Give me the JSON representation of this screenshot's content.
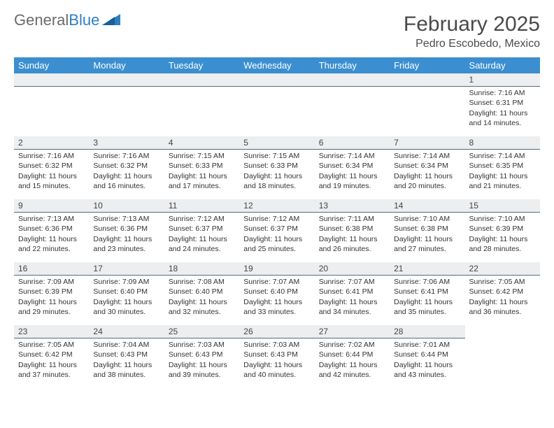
{
  "logo": {
    "part1": "General",
    "part2": "Blue"
  },
  "title": "February 2025",
  "location": "Pedro Escobedo, Mexico",
  "colors": {
    "header_bg": "#3b8fd0",
    "header_text": "#ffffff",
    "daynum_bg": "#eceeef",
    "daynum_border": "#5a6a7a",
    "body_text": "#333333"
  },
  "weekdays": [
    "Sunday",
    "Monday",
    "Tuesday",
    "Wednesday",
    "Thursday",
    "Friday",
    "Saturday"
  ],
  "weeks": [
    [
      null,
      null,
      null,
      null,
      null,
      null,
      {
        "n": "1",
        "sr": "Sunrise: 7:16 AM",
        "ss": "Sunset: 6:31 PM",
        "dl": "Daylight: 11 hours and 14 minutes."
      }
    ],
    [
      {
        "n": "2",
        "sr": "Sunrise: 7:16 AM",
        "ss": "Sunset: 6:32 PM",
        "dl": "Daylight: 11 hours and 15 minutes."
      },
      {
        "n": "3",
        "sr": "Sunrise: 7:16 AM",
        "ss": "Sunset: 6:32 PM",
        "dl": "Daylight: 11 hours and 16 minutes."
      },
      {
        "n": "4",
        "sr": "Sunrise: 7:15 AM",
        "ss": "Sunset: 6:33 PM",
        "dl": "Daylight: 11 hours and 17 minutes."
      },
      {
        "n": "5",
        "sr": "Sunrise: 7:15 AM",
        "ss": "Sunset: 6:33 PM",
        "dl": "Daylight: 11 hours and 18 minutes."
      },
      {
        "n": "6",
        "sr": "Sunrise: 7:14 AM",
        "ss": "Sunset: 6:34 PM",
        "dl": "Daylight: 11 hours and 19 minutes."
      },
      {
        "n": "7",
        "sr": "Sunrise: 7:14 AM",
        "ss": "Sunset: 6:34 PM",
        "dl": "Daylight: 11 hours and 20 minutes."
      },
      {
        "n": "8",
        "sr": "Sunrise: 7:14 AM",
        "ss": "Sunset: 6:35 PM",
        "dl": "Daylight: 11 hours and 21 minutes."
      }
    ],
    [
      {
        "n": "9",
        "sr": "Sunrise: 7:13 AM",
        "ss": "Sunset: 6:36 PM",
        "dl": "Daylight: 11 hours and 22 minutes."
      },
      {
        "n": "10",
        "sr": "Sunrise: 7:13 AM",
        "ss": "Sunset: 6:36 PM",
        "dl": "Daylight: 11 hours and 23 minutes."
      },
      {
        "n": "11",
        "sr": "Sunrise: 7:12 AM",
        "ss": "Sunset: 6:37 PM",
        "dl": "Daylight: 11 hours and 24 minutes."
      },
      {
        "n": "12",
        "sr": "Sunrise: 7:12 AM",
        "ss": "Sunset: 6:37 PM",
        "dl": "Daylight: 11 hours and 25 minutes."
      },
      {
        "n": "13",
        "sr": "Sunrise: 7:11 AM",
        "ss": "Sunset: 6:38 PM",
        "dl": "Daylight: 11 hours and 26 minutes."
      },
      {
        "n": "14",
        "sr": "Sunrise: 7:10 AM",
        "ss": "Sunset: 6:38 PM",
        "dl": "Daylight: 11 hours and 27 minutes."
      },
      {
        "n": "15",
        "sr": "Sunrise: 7:10 AM",
        "ss": "Sunset: 6:39 PM",
        "dl": "Daylight: 11 hours and 28 minutes."
      }
    ],
    [
      {
        "n": "16",
        "sr": "Sunrise: 7:09 AM",
        "ss": "Sunset: 6:39 PM",
        "dl": "Daylight: 11 hours and 29 minutes."
      },
      {
        "n": "17",
        "sr": "Sunrise: 7:09 AM",
        "ss": "Sunset: 6:40 PM",
        "dl": "Daylight: 11 hours and 30 minutes."
      },
      {
        "n": "18",
        "sr": "Sunrise: 7:08 AM",
        "ss": "Sunset: 6:40 PM",
        "dl": "Daylight: 11 hours and 32 minutes."
      },
      {
        "n": "19",
        "sr": "Sunrise: 7:07 AM",
        "ss": "Sunset: 6:40 PM",
        "dl": "Daylight: 11 hours and 33 minutes."
      },
      {
        "n": "20",
        "sr": "Sunrise: 7:07 AM",
        "ss": "Sunset: 6:41 PM",
        "dl": "Daylight: 11 hours and 34 minutes."
      },
      {
        "n": "21",
        "sr": "Sunrise: 7:06 AM",
        "ss": "Sunset: 6:41 PM",
        "dl": "Daylight: 11 hours and 35 minutes."
      },
      {
        "n": "22",
        "sr": "Sunrise: 7:05 AM",
        "ss": "Sunset: 6:42 PM",
        "dl": "Daylight: 11 hours and 36 minutes."
      }
    ],
    [
      {
        "n": "23",
        "sr": "Sunrise: 7:05 AM",
        "ss": "Sunset: 6:42 PM",
        "dl": "Daylight: 11 hours and 37 minutes."
      },
      {
        "n": "24",
        "sr": "Sunrise: 7:04 AM",
        "ss": "Sunset: 6:43 PM",
        "dl": "Daylight: 11 hours and 38 minutes."
      },
      {
        "n": "25",
        "sr": "Sunrise: 7:03 AM",
        "ss": "Sunset: 6:43 PM",
        "dl": "Daylight: 11 hours and 39 minutes."
      },
      {
        "n": "26",
        "sr": "Sunrise: 7:03 AM",
        "ss": "Sunset: 6:43 PM",
        "dl": "Daylight: 11 hours and 40 minutes."
      },
      {
        "n": "27",
        "sr": "Sunrise: 7:02 AM",
        "ss": "Sunset: 6:44 PM",
        "dl": "Daylight: 11 hours and 42 minutes."
      },
      {
        "n": "28",
        "sr": "Sunrise: 7:01 AM",
        "ss": "Sunset: 6:44 PM",
        "dl": "Daylight: 11 hours and 43 minutes."
      },
      null
    ]
  ]
}
